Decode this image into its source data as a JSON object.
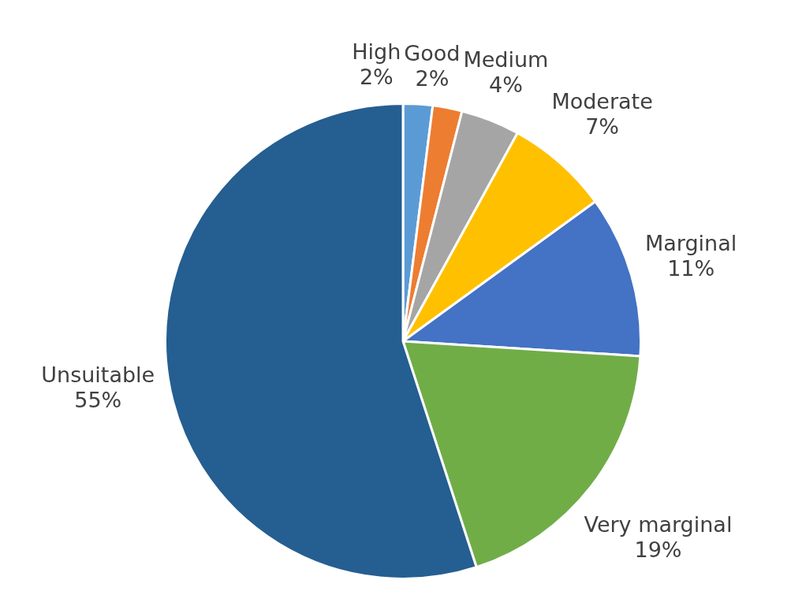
{
  "chart_data": {
    "type": "pie",
    "categories": [
      "High",
      "Good",
      "Medium",
      "Moderate",
      "Marginal",
      "Very marginal",
      "Unsuitable"
    ],
    "values": [
      2,
      2,
      4,
      7,
      11,
      19,
      55
    ],
    "value_labels": [
      "2%",
      "2%",
      "4%",
      "7%",
      "11%",
      "19%",
      "55%"
    ],
    "colors": [
      "#5b9bd5",
      "#ed7d31",
      "#a5a5a5",
      "#ffc000",
      "#4472c4",
      "#70ad47",
      "#255e91"
    ],
    "legend": false
  }
}
